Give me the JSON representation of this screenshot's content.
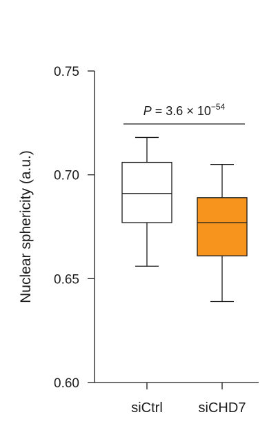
{
  "chart_data": {
    "type": "box",
    "ylabel": "Nuclear sphericity (a.u.)",
    "ylim": [
      0.6,
      0.75
    ],
    "yticks": [
      {
        "value": 0.6,
        "label": "0.60"
      },
      {
        "value": 0.65,
        "label": "0.65"
      },
      {
        "value": 0.7,
        "label": "0.70"
      },
      {
        "value": 0.75,
        "label": "0.75"
      }
    ],
    "categories": [
      "siCtrl",
      "siCHD7"
    ],
    "boxes": [
      {
        "category": "siCtrl",
        "whisker_low": 0.656,
        "q1": 0.677,
        "median": 0.691,
        "q3": 0.706,
        "whisker_high": 0.718,
        "fill": "#ffffff"
      },
      {
        "category": "siCHD7",
        "whisker_low": 0.639,
        "q1": 0.661,
        "median": 0.677,
        "q3": 0.689,
        "whisker_high": 0.705,
        "fill": "#f7941d"
      }
    ],
    "significance": {
      "value_at": 0.7245,
      "p_prefix": "P",
      "p_equals": " = 3.6 × 10",
      "p_exponent": "−54"
    },
    "grid": false,
    "legend": "none"
  }
}
